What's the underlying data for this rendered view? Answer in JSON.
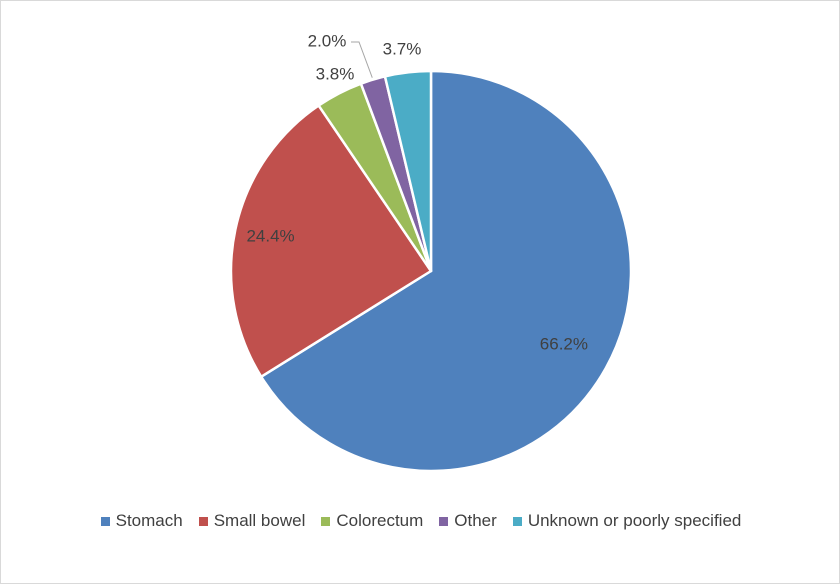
{
  "chart_data": {
    "type": "pie",
    "title": "",
    "start_angle_deg": 0,
    "direction": "clockwise",
    "categories": [
      "Stomach",
      "Small bowel",
      "Colorectum",
      "Other",
      "Unknown or poorly specified"
    ],
    "values": [
      66.2,
      24.4,
      3.8,
      2.0,
      3.7
    ],
    "data_labels": [
      "66.2%",
      "24.4%",
      "3.8%",
      "2.0%",
      "3.7%"
    ],
    "colors": [
      "#4f81bd",
      "#c0504d",
      "#9bbb59",
      "#8064a2",
      "#4bacc6"
    ],
    "legend_position": "bottom"
  }
}
